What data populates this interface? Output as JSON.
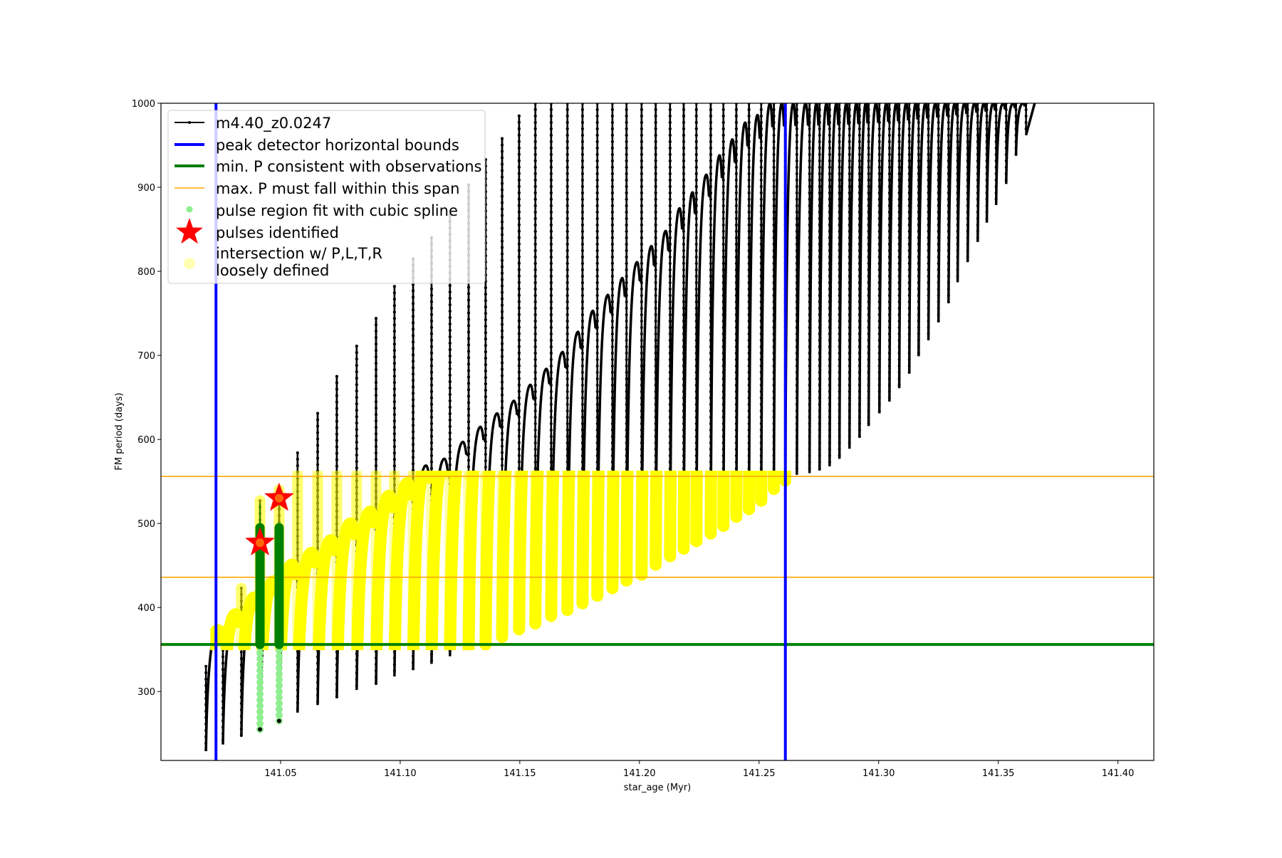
{
  "chart_data": {
    "type": "line",
    "title": "",
    "xlabel": "star_age (Myr)",
    "ylabel": "FM period (days)",
    "xlim": [
      141.0,
      141.415
    ],
    "ylim": [
      218,
      1000
    ],
    "xticks": [
      141.05,
      141.1,
      141.15,
      141.2,
      141.25,
      141.3,
      141.35,
      141.4
    ],
    "xtick_labels": [
      "141.05",
      "141.10",
      "141.15",
      "141.20",
      "141.25",
      "141.30",
      "141.35",
      "141.40"
    ],
    "yticks": [
      300,
      400,
      500,
      600,
      700,
      800,
      900,
      1000
    ],
    "ytick_labels": [
      "300",
      "400",
      "500",
      "600",
      "700",
      "800",
      "900",
      "1000"
    ],
    "grid": false,
    "legend_position": "top-left",
    "series": {
      "name": "m4.40_z0.0247",
      "color": "#000000",
      "start": {
        "age": 141.0188,
        "period": 330
      },
      "end": {
        "age": 141.3652,
        "period": 1000
      },
      "pulse_age": [
        141.0188,
        141.0259,
        141.0336,
        141.0414,
        141.0494,
        141.0571,
        141.0655,
        141.0735,
        141.0818,
        141.0899,
        141.0976,
        141.1054,
        141.1131,
        141.1208,
        141.1286,
        141.1357,
        141.1426,
        141.1497,
        141.1565,
        141.1631,
        141.1699,
        141.1762,
        141.1824,
        141.1887,
        141.1946,
        141.2009,
        141.2068,
        141.2128,
        141.2185,
        141.2238,
        141.2298,
        141.2351,
        141.2405,
        141.2458,
        141.2509,
        141.2562,
        141.261,
        141.2658,
        141.2711,
        141.2753,
        141.2795,
        141.2836,
        141.2878,
        141.292,
        141.2958,
        141.3003,
        141.3045,
        141.3086,
        141.3128,
        141.3167,
        141.3208,
        141.325,
        141.3292,
        141.333,
        141.3372,
        141.3414,
        141.3452,
        141.3491,
        141.3533,
        141.3574,
        141.3616
      ],
      "pulse_trough": [
        229,
        237,
        247,
        256,
        265,
        275,
        284,
        292,
        302,
        309,
        318,
        326,
        333,
        342,
        350,
        356,
        365,
        374,
        381,
        390,
        397,
        405,
        414,
        423,
        432,
        439,
        451,
        461,
        470,
        479,
        488,
        497,
        508,
        517,
        527,
        541,
        551,
        558,
        560,
        563,
        568,
        577,
        589,
        602,
        616,
        631,
        645,
        661,
        679,
        699,
        718,
        740,
        762,
        787,
        811,
        835,
        858,
        879,
        904,
        938,
        962
      ],
      "pulse_hump": [
        330,
        373,
        392,
        412,
        431,
        451,
        465,
        480,
        500,
        514,
        533,
        548,
        569,
        577,
        597,
        615,
        631,
        646,
        665,
        684,
        704,
        728,
        753,
        772,
        792,
        811,
        830,
        848,
        875,
        894,
        915,
        938,
        957,
        977,
        986,
        1000,
        1000,
        1000,
        1000,
        1000,
        1000,
        1000,
        1000,
        1000,
        1000,
        1000,
        1000,
        1000,
        1000,
        1000,
        1000,
        1000,
        1000,
        1000,
        1000,
        1000,
        1000,
        1000,
        1000,
        1000,
        1000
      ],
      "pulse_spike_top": [
        331,
        372,
        423,
        527,
        540,
        584,
        631,
        675,
        711,
        744,
        782,
        815,
        840,
        867,
        903,
        933,
        958,
        985,
        1000,
        1000,
        1000,
        1000,
        1000,
        1000,
        1000,
        1000,
        1000,
        1000,
        1000,
        1000,
        1000,
        1000,
        1000,
        1000,
        1000,
        1000,
        1000,
        1000,
        1000,
        1000,
        1000,
        1000,
        1000,
        1000,
        1000,
        1000,
        1000,
        1000,
        1000,
        1000,
        1000,
        1000,
        1000,
        1000,
        1000,
        1000,
        1000,
        1000,
        1000,
        1000,
        1000
      ]
    },
    "peak_detector_bounds": {
      "label": "peak detector horizontal bounds",
      "x": [
        141.023,
        141.261
      ],
      "color": "#0000ff"
    },
    "min_period": {
      "label": "min. P consistent with observations",
      "y": 356,
      "color": "#008000"
    },
    "max_period_span": {
      "label": "max. P must fall within this span",
      "y": [
        436,
        556
      ],
      "color": "#ffa500"
    },
    "pulse_region_fit": {
      "label": "pulse region fit with cubic spline",
      "color": "#90ee90",
      "dark_color": "#008000",
      "regions": [
        {
          "age": 141.0414,
          "p_min": 255,
          "p_max": 495,
          "spline_top": 524
        },
        {
          "age": 141.0494,
          "p_min": 265,
          "p_max": 495
        }
      ]
    },
    "pulses_identified": {
      "label": "pulses identified",
      "color": "#ff0000",
      "points": [
        {
          "age": 141.0414,
          "period": 477
        },
        {
          "age": 141.0494,
          "period": 530
        }
      ]
    },
    "intersection": {
      "label": "intersection w/ P,L,T,R\nloosely defined",
      "label_lines": [
        "intersection w/ P,L,T,R",
        "loosely defined"
      ],
      "color": "#ffff00",
      "p_range": [
        356,
        556
      ]
    }
  }
}
